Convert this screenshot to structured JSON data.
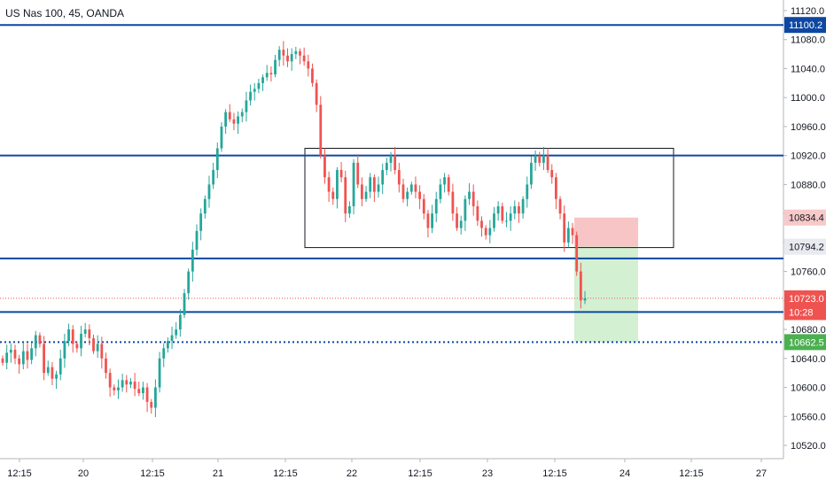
{
  "header": {
    "symbol": "US Nas 100, 45, OANDA"
  },
  "colors": {
    "bull": "#26a69a",
    "bear": "#ef5350",
    "hline": "#0d47a1",
    "stop_zone": "#f5b7b7",
    "target_zone": "#c8ecc7",
    "price_tag": "#ef5350",
    "target_tag": "#4caf50"
  },
  "chart_data": {
    "type": "candlestick",
    "instrument": "US Nas 100, 45, OANDA",
    "y_axis": {
      "range": [
        10490,
        11130
      ],
      "ticks": [
        11120.0,
        11080.0,
        11040.0,
        11000.0,
        10960.0,
        10920.0,
        10880.0,
        10840.0,
        10800.0,
        10760.0,
        10720.0,
        10680.0,
        10640.0,
        10600.0,
        10560.0,
        10520.0
      ],
      "tick_labels": [
        "11120.0",
        "11080.0",
        "11040.0",
        "11000.0",
        "10960.0",
        "10920.0",
        "10880.0",
        "10840.0",
        "10800.0",
        "10760.0",
        "10720.0",
        "10680.0",
        "10640.0",
        "10600.0",
        "10560.0",
        "10520.0"
      ]
    },
    "x_axis": {
      "tick_labels": [
        "12:15",
        "20",
        "12:15",
        "21",
        "12:15",
        "22",
        "12:15",
        "23",
        "12:15",
        "24",
        "12:15",
        "27"
      ]
    },
    "horizontal_lines": [
      11100.2,
      10920.0,
      10778.0,
      10704.0
    ],
    "current_price_line": 10723.0,
    "target_dotted_line": 10662.5,
    "range_box": {
      "price_top": 10930,
      "price_bottom": 10793
    },
    "position": {
      "entry": 10794.2,
      "stop": 10834.4,
      "target": 10662.5
    },
    "price_tags": [
      {
        "label": "11100.2",
        "price": 11100.2,
        "style": "blue"
      },
      {
        "label": "10834.4",
        "price": 10834.4,
        "style": "pink"
      },
      {
        "label": "10794.2",
        "price": 10794.2,
        "style": "light"
      },
      {
        "label": "10723.0",
        "price": 10723.0,
        "style": "red"
      },
      {
        "label": "10:28",
        "price": 10704.0,
        "style": "red"
      },
      {
        "label": "10662.5",
        "price": 10662.5,
        "style": "green"
      }
    ],
    "candles_close": [
      10634,
      10648,
      10652,
      10640,
      10632,
      10650,
      10638,
      10654,
      10672,
      10660,
      10620,
      10628,
      10612,
      10618,
      10640,
      10664,
      10680,
      10660,
      10654,
      10674,
      10680,
      10668,
      10650,
      10660,
      10640,
      10620,
      10600,
      10596,
      10600,
      10610,
      10604,
      10608,
      10598,
      10592,
      10600,
      10580,
      10572,
      10600,
      10640,
      10654,
      10664,
      10672,
      10680,
      10700,
      10730,
      10760,
      10790,
      10816,
      10840,
      10860,
      10880,
      10900,
      10930,
      10960,
      10980,
      10970,
      10964,
      10974,
      10980,
      10996,
      11008,
      11012,
      11020,
      11028,
      11034,
      11032,
      11052,
      11066,
      11058,
      11050,
      11060,
      11064,
      11058,
      11050,
      11040,
      11020,
      10990,
      10920,
      10890,
      10870,
      10860,
      10900,
      10890,
      10840,
      10850,
      10910,
      10880,
      10860,
      10870,
      10890,
      10870,
      10880,
      10900,
      10910,
      10920,
      10900,
      10880,
      10860,
      10870,
      10880,
      10870,
      10860,
      10840,
      10820,
      10840,
      10860,
      10880,
      10890,
      10870,
      10840,
      10820,
      10830,
      10860,
      10870,
      10850,
      10830,
      10820,
      10810,
      10820,
      10840,
      10850,
      10830,
      10830,
      10840,
      10850,
      10840,
      10860,
      10880,
      10910,
      10920,
      10910,
      10920,
      10900,
      10890,
      10860,
      10840,
      10800,
      10820,
      10810,
      10760,
      10720,
      10723
    ],
    "candles_open": [
      10640,
      10634,
      10648,
      10652,
      10640,
      10632,
      10650,
      10638,
      10654,
      10672,
      10660,
      10620,
      10628,
      10612,
      10618,
      10640,
      10664,
      10680,
      10660,
      10654,
      10674,
      10680,
      10668,
      10650,
      10660,
      10640,
      10620,
      10600,
      10596,
      10600,
      10610,
      10604,
      10608,
      10598,
      10592,
      10600,
      10580,
      10572,
      10600,
      10640,
      10654,
      10664,
      10672,
      10680,
      10700,
      10730,
      10760,
      10790,
      10816,
      10840,
      10860,
      10880,
      10900,
      10930,
      10960,
      10980,
      10970,
      10964,
      10974,
      10980,
      10996,
      11008,
      11012,
      11020,
      11028,
      11034,
      11032,
      11052,
      11066,
      11058,
      11050,
      11060,
      11064,
      11058,
      11050,
      11040,
      11020,
      10990,
      10920,
      10890,
      10870,
      10860,
      10900,
      10890,
      10840,
      10850,
      10910,
      10880,
      10860,
      10870,
      10890,
      10870,
      10880,
      10900,
      10910,
      10920,
      10900,
      10880,
      10860,
      10870,
      10880,
      10870,
      10860,
      10840,
      10820,
      10840,
      10860,
      10880,
      10890,
      10870,
      10840,
      10820,
      10830,
      10860,
      10870,
      10850,
      10830,
      10820,
      10810,
      10820,
      10840,
      10850,
      10830,
      10830,
      10840,
      10850,
      10840,
      10860,
      10880,
      10910,
      10920,
      10910,
      10920,
      10900,
      10890,
      10860,
      10840,
      10800,
      10820,
      10810,
      10760,
      10720
    ]
  }
}
